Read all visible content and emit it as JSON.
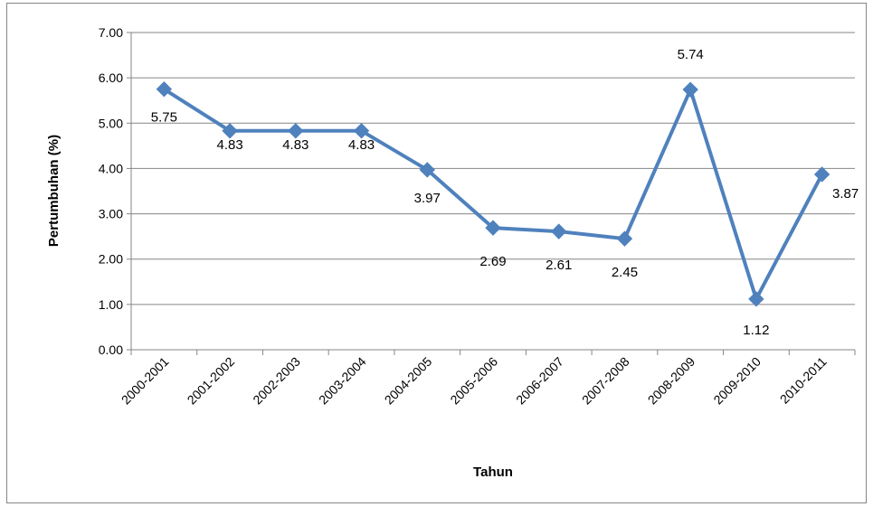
{
  "chart_data": {
    "type": "line",
    "title": "",
    "xlabel": "Tahun",
    "ylabel": "Pertumbuhan (%)",
    "categories": [
      "2000-2001",
      "2001-2002",
      "2002-2003",
      "2003-2004",
      "2004-2005",
      "2005-2006",
      "2006-2007",
      "2007-2008",
      "2008-2009",
      "2009-2010",
      "2010-2011"
    ],
    "series": [
      {
        "values": [
          5.75,
          4.83,
          4.83,
          4.83,
          3.97,
          2.69,
          2.61,
          2.45,
          5.74,
          1.12,
          3.87
        ],
        "data_labels": [
          "5.75",
          "4.83",
          "4.83",
          "4.83",
          "3.97",
          "2.69",
          "2.61",
          "2.45",
          "5.74",
          "1.12",
          "3.87"
        ],
        "color": "#4f81bd",
        "marker": "diamond"
      }
    ],
    "ylim": [
      0,
      7
    ],
    "yticks": [
      "0.00",
      "1.00",
      "2.00",
      "3.00",
      "4.00",
      "5.00",
      "6.00",
      "7.00"
    ],
    "grid": "horizontal",
    "legend": "none"
  }
}
